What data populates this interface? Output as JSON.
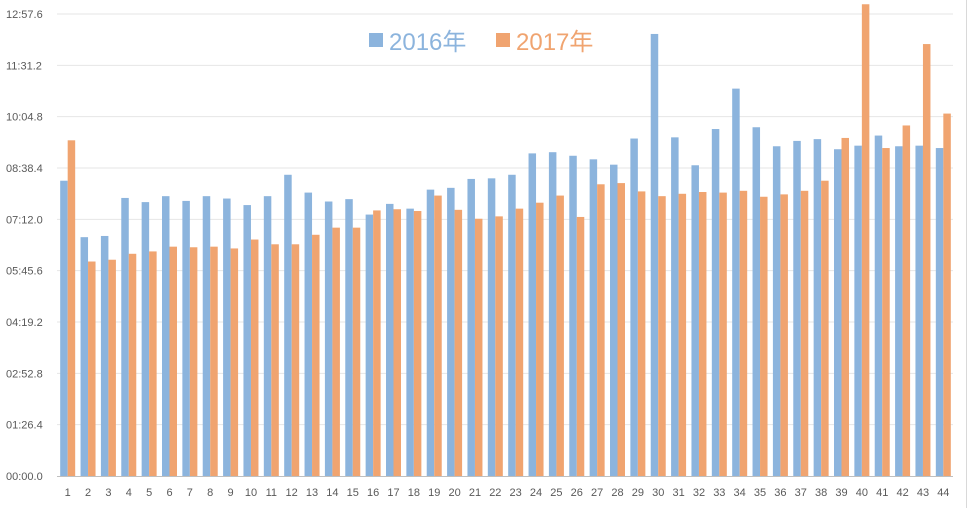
{
  "chart_data": {
    "type": "bar",
    "title": "",
    "xlabel": "",
    "ylabel": "",
    "categories": [
      "1",
      "2",
      "3",
      "4",
      "5",
      "6",
      "7",
      "8",
      "9",
      "10",
      "11",
      "12",
      "13",
      "14",
      "15",
      "16",
      "17",
      "18",
      "19",
      "20",
      "21",
      "22",
      "23",
      "24",
      "25",
      "26",
      "27",
      "28",
      "29",
      "30",
      "31",
      "32",
      "33",
      "34",
      "35",
      "36",
      "37",
      "38",
      "39",
      "40",
      "41",
      "42",
      "43",
      "44"
    ],
    "series": [
      {
        "name": "2016年",
        "color": "#8cb4dd",
        "values": [
          497,
          402,
          404,
          468,
          461,
          471,
          463,
          471,
          467,
          456,
          471,
          507,
          477,
          462,
          466,
          440,
          458,
          450,
          482,
          485,
          500,
          501,
          507,
          543,
          545,
          539,
          533,
          524,
          568,
          744,
          570,
          523,
          584,
          652,
          587,
          555,
          564,
          567,
          550,
          556,
          573,
          555,
          556,
          552
        ]
      },
      {
        "name": "2017年",
        "color": "#f0a470",
        "values": [
          565,
          361,
          364,
          374,
          378,
          386,
          385,
          386,
          383,
          398,
          390,
          390,
          406,
          418,
          418,
          447,
          449,
          446,
          472,
          448,
          433,
          437,
          450,
          460,
          472,
          436,
          491,
          493,
          479,
          471,
          475,
          478,
          477,
          480,
          470,
          474,
          480,
          497,
          569,
          794,
          552,
          590,
          727,
          610
        ]
      }
    ],
    "yaxis": {
      "tick_labels": [
        "00:00.0",
        "01:26.4",
        "02:52.8",
        "04:19.2",
        "05:45.6",
        "07:12.0",
        "08:38.4",
        "10:04.8",
        "11:31.2",
        "12:57.6"
      ],
      "tick_values_seconds": [
        0,
        86.4,
        172.8,
        259.2,
        345.6,
        432,
        518.4,
        604.8,
        691.2,
        777.6
      ],
      "ylim": [
        0,
        777.6
      ],
      "value_format": "mm:ss.s"
    },
    "grid": true,
    "legend_position": "top-center"
  }
}
